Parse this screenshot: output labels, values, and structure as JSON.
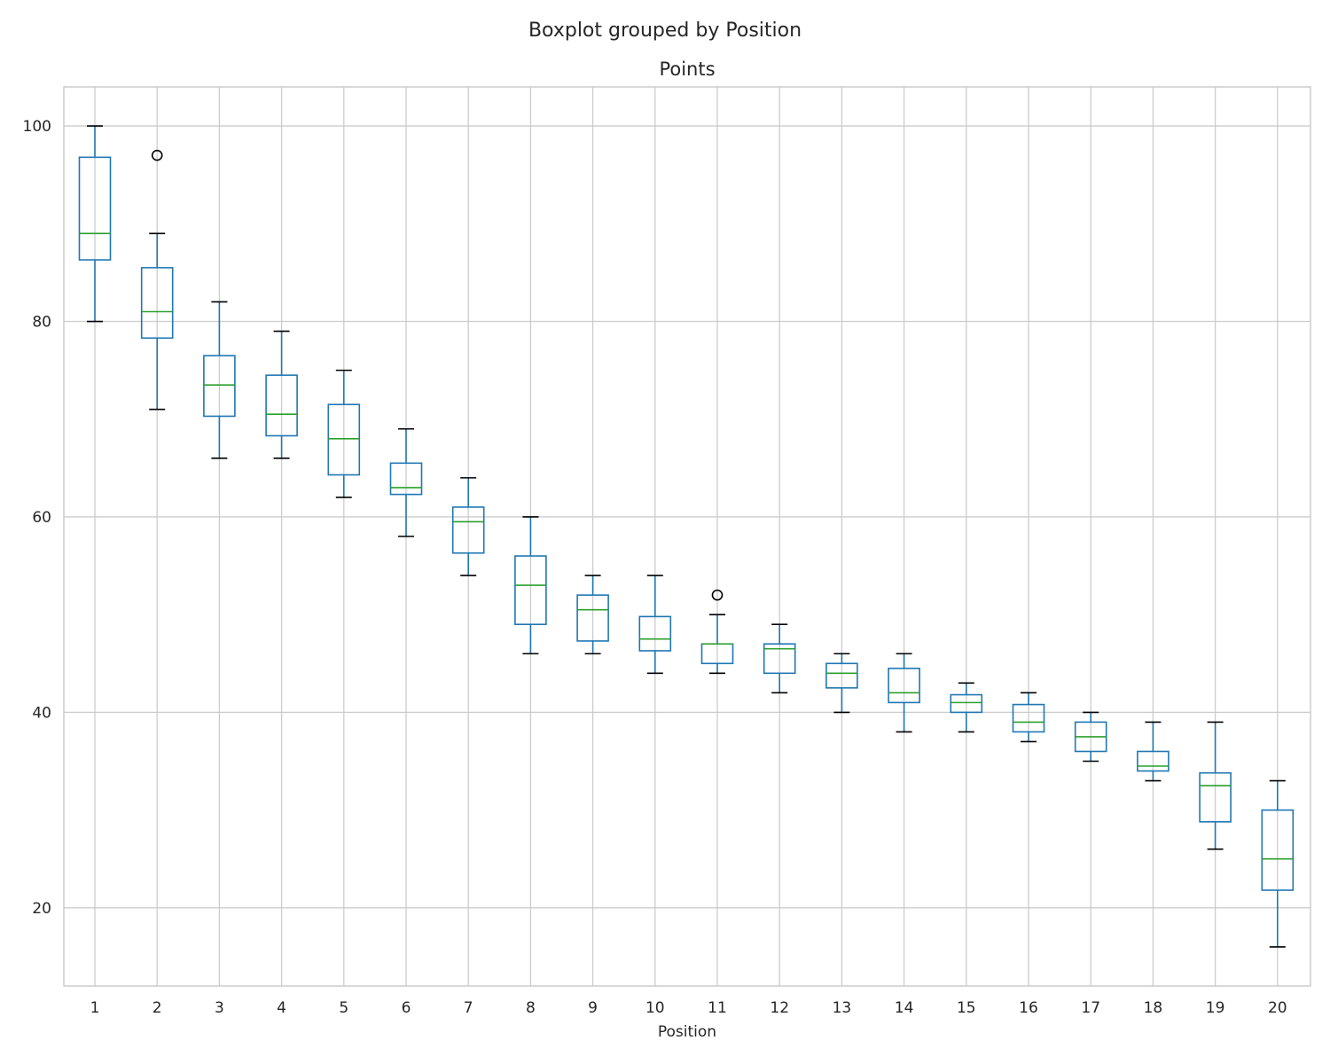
{
  "chart_data": {
    "type": "box",
    "suptitle": "Boxplot grouped by Position",
    "title": "Points",
    "xlabel": "Position",
    "ylabel": "",
    "ylim": [
      12,
      104
    ],
    "yticks": [
      20,
      40,
      60,
      80,
      100
    ],
    "grid": true,
    "colors": {
      "box": "#1f77b4",
      "median": "#2ca02c",
      "cap": "#000000",
      "flier": "#000000",
      "grid": "#cccccc"
    },
    "categories": [
      "1",
      "2",
      "3",
      "4",
      "5",
      "6",
      "7",
      "8",
      "9",
      "10",
      "11",
      "12",
      "13",
      "14",
      "15",
      "16",
      "17",
      "18",
      "19",
      "20"
    ],
    "boxes": [
      {
        "whislo": 80,
        "q1": 86.3,
        "med": 89,
        "q3": 96.8,
        "whishi": 100,
        "fliers": []
      },
      {
        "whislo": 71,
        "q1": 78.3,
        "med": 81,
        "q3": 85.5,
        "whishi": 89,
        "fliers": [
          97
        ]
      },
      {
        "whislo": 66,
        "q1": 70.3,
        "med": 73.5,
        "q3": 76.5,
        "whishi": 82,
        "fliers": []
      },
      {
        "whislo": 66,
        "q1": 68.3,
        "med": 70.5,
        "q3": 74.5,
        "whishi": 79,
        "fliers": []
      },
      {
        "whislo": 62,
        "q1": 64.3,
        "med": 68,
        "q3": 71.5,
        "whishi": 75,
        "fliers": []
      },
      {
        "whislo": 58,
        "q1": 62.3,
        "med": 63,
        "q3": 65.5,
        "whishi": 69,
        "fliers": []
      },
      {
        "whislo": 54,
        "q1": 56.3,
        "med": 59.5,
        "q3": 61,
        "whishi": 64,
        "fliers": []
      },
      {
        "whislo": 46,
        "q1": 49,
        "med": 53,
        "q3": 56,
        "whishi": 60,
        "fliers": []
      },
      {
        "whislo": 46,
        "q1": 47.3,
        "med": 50.5,
        "q3": 52,
        "whishi": 54,
        "fliers": []
      },
      {
        "whislo": 44,
        "q1": 46.3,
        "med": 47.5,
        "q3": 49.8,
        "whishi": 54,
        "fliers": []
      },
      {
        "whislo": 44,
        "q1": 45,
        "med": 47,
        "q3": 47,
        "whishi": 50,
        "fliers": [
          52
        ]
      },
      {
        "whislo": 42,
        "q1": 44,
        "med": 46.5,
        "q3": 47,
        "whishi": 49,
        "fliers": []
      },
      {
        "whislo": 40,
        "q1": 42.5,
        "med": 44,
        "q3": 45,
        "whishi": 46,
        "fliers": []
      },
      {
        "whislo": 38,
        "q1": 41,
        "med": 42,
        "q3": 44.5,
        "whishi": 46,
        "fliers": []
      },
      {
        "whislo": 38,
        "q1": 40,
        "med": 41,
        "q3": 41.8,
        "whishi": 43,
        "fliers": []
      },
      {
        "whislo": 37,
        "q1": 38,
        "med": 39,
        "q3": 40.8,
        "whishi": 42,
        "fliers": []
      },
      {
        "whislo": 35,
        "q1": 36,
        "med": 37.5,
        "q3": 39,
        "whishi": 40,
        "fliers": []
      },
      {
        "whislo": 33,
        "q1": 34,
        "med": 34.5,
        "q3": 36,
        "whishi": 39,
        "fliers": []
      },
      {
        "whislo": 26,
        "q1": 28.8,
        "med": 32.5,
        "q3": 33.8,
        "whishi": 39,
        "fliers": []
      },
      {
        "whislo": 16,
        "q1": 21.8,
        "med": 25,
        "q3": 30,
        "whishi": 33,
        "fliers": []
      }
    ]
  }
}
